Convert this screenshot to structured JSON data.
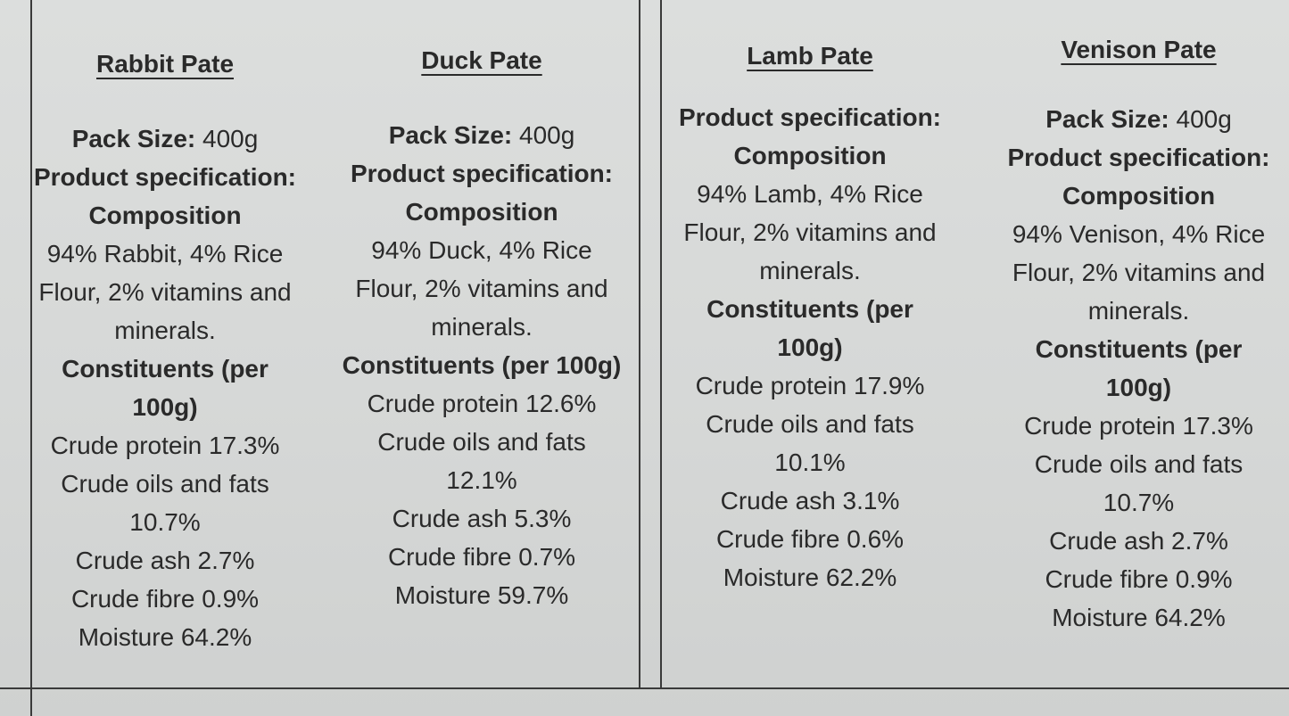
{
  "columns": [
    {
      "title": "Rabbit Pate",
      "pack_size_label": "Pack Size:",
      "pack_size_value": " 400g",
      "spec_label": "Product specification:",
      "composition_label": "Composition",
      "composition_lines": [
        "94% Rabbit, 4% Rice",
        "Flour, 2% vitamins and",
        "minerals."
      ],
      "constituents_lines": [
        "Constituents (per",
        "100g)"
      ],
      "constituent_lines": [
        "Crude protein 17.3%",
        "Crude oils and fats",
        "10.7%",
        "Crude ash 2.7%",
        "Crude fibre 0.9%",
        "Moisture 64.2%"
      ]
    },
    {
      "title": "Duck Pate",
      "pack_size_label": "Pack Size:",
      "pack_size_value": " 400g",
      "spec_label": "Product specification:",
      "composition_label": "Composition",
      "composition_lines": [
        "94% Duck, 4% Rice",
        "Flour, 2% vitamins and",
        "minerals."
      ],
      "constituents_lines": [
        "Constituents (per 100g)"
      ],
      "constituent_lines": [
        "Crude protein 12.6%",
        "Crude oils and fats",
        "12.1%",
        "Crude ash 5.3%",
        "Crude fibre 0.7%",
        "Moisture 59.7%"
      ]
    },
    {
      "title": "Lamb Pate",
      "spec_label": "Product specification:",
      "composition_label": "Composition",
      "composition_lines": [
        "94% Lamb, 4% Rice",
        "Flour, 2% vitamins and",
        "minerals."
      ],
      "constituents_lines": [
        "Constituents (per",
        "100g)"
      ],
      "constituent_lines": [
        "Crude protein 17.9%",
        "Crude oils and fats",
        "10.1%",
        "Crude ash 3.1%",
        "Crude fibre 0.6%",
        "Moisture 62.2%"
      ]
    },
    {
      "title": "Venison Pate",
      "pack_size_label": "Pack Size:",
      "pack_size_value": " 400g",
      "spec_label": "Product specification:",
      "composition_label": "Composition",
      "composition_lines": [
        "94% Venison, 4% Rice",
        "Flour, 2% vitamins and",
        "minerals."
      ],
      "constituents_lines": [
        "Constituents (per",
        "100g)"
      ],
      "constituent_lines": [
        "Crude protein 17.3%",
        "Crude oils and fats",
        "10.7%",
        "Crude ash 2.7%",
        "Crude fibre 0.9%",
        "Moisture 64.2%"
      ]
    }
  ]
}
